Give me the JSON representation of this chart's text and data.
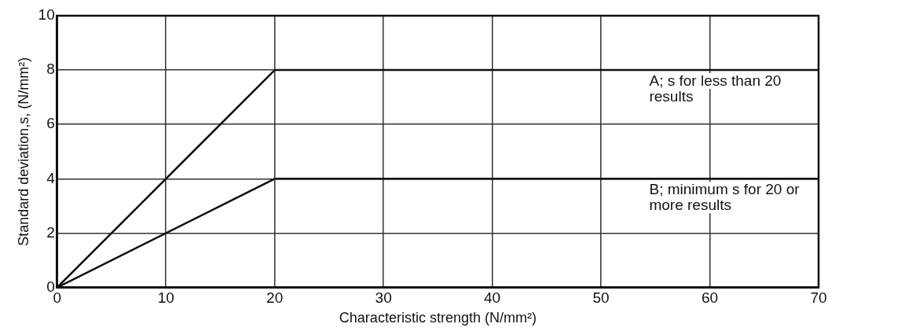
{
  "chart_data": {
    "type": "line",
    "xlabel": "Characteristic strength (N/mm²)",
    "ylabel": "Standard deviation,s, (N/mm²)",
    "x": [
      0,
      20,
      70
    ],
    "series": [
      {
        "color": "#111111",
        "values": [
          0,
          8,
          8
        ]
      },
      {
        "color": "#111111",
        "values": [
          0,
          4,
          4
        ]
      }
    ],
    "xlim": [
      0,
      70
    ],
    "xticks": [
      0,
      10,
      20,
      30,
      40,
      50,
      60,
      70
    ],
    "ylim": [
      0,
      10
    ],
    "yticks": [
      0,
      2,
      4,
      6,
      8,
      10
    ],
    "grid": true,
    "legend": false,
    "marker": "none",
    "line_style": "solid",
    "annotations": [
      {
        "text": "A; s for less than 20 results",
        "x": 54,
        "y": 8
      },
      {
        "text": "B; minimum s for 20 or more results",
        "x": 54,
        "y": 4
      }
    ]
  }
}
